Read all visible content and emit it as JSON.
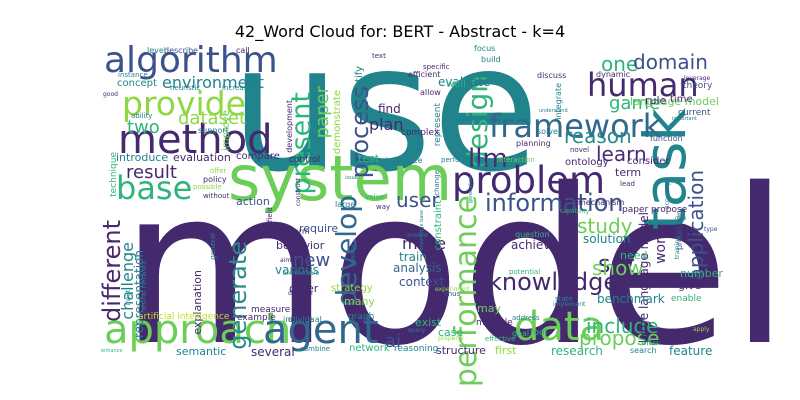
{
  "title": "42_Word Cloud for: BERT - Abstract - k=4",
  "palette": {
    "dark_purple": "#45296f",
    "purple": "#472c7a",
    "indigo": "#3b528b",
    "blue": "#31688e",
    "teal": "#21838c",
    "sea": "#2a8a8a",
    "green_teal": "#2fb47c",
    "green": "#6cce59",
    "lime": "#8fd744",
    "yellow": "#bddf26"
  },
  "words": [
    {
      "id": "model",
      "text": "model"
    },
    {
      "id": "use",
      "text": "use"
    },
    {
      "id": "system",
      "text": "system"
    },
    {
      "id": "task",
      "text": "task"
    },
    {
      "id": "approach",
      "text": "approach"
    },
    {
      "id": "agent",
      "text": "agent"
    },
    {
      "id": "data",
      "text": "data"
    },
    {
      "id": "method",
      "text": "method"
    },
    {
      "id": "algorithm",
      "text": "algorithm"
    },
    {
      "id": "provide",
      "text": "provide"
    },
    {
      "id": "problem",
      "text": "problem"
    },
    {
      "id": "framework",
      "text": "framework"
    },
    {
      "id": "human",
      "text": "human"
    },
    {
      "id": "base",
      "text": "base"
    },
    {
      "id": "information",
      "text": "information"
    },
    {
      "id": "knowledge",
      "text": "knowledge"
    },
    {
      "id": "performance",
      "text": "performance"
    },
    {
      "id": "develop",
      "text": "develop"
    },
    {
      "id": "design",
      "text": "design"
    },
    {
      "id": "process",
      "text": "process"
    },
    {
      "id": "present",
      "text": "present"
    },
    {
      "id": "different",
      "text": "different"
    },
    {
      "id": "generate",
      "text": "generate"
    },
    {
      "id": "llm",
      "text": "llm"
    },
    {
      "id": "user",
      "text": "user"
    },
    {
      "id": "reason",
      "text": "reason"
    },
    {
      "id": "learn",
      "text": "learn"
    },
    {
      "id": "set",
      "text": "set"
    },
    {
      "id": "show",
      "text": "show"
    },
    {
      "id": "study",
      "text": "study"
    },
    {
      "id": "include",
      "text": "include"
    },
    {
      "id": "propose",
      "text": "propose"
    },
    {
      "id": "application",
      "text": "application"
    },
    {
      "id": "one",
      "text": "one"
    },
    {
      "id": "domain",
      "text": "domain"
    },
    {
      "id": "game",
      "text": "game"
    },
    {
      "id": "result",
      "text": "result"
    },
    {
      "id": "two",
      "text": "two"
    },
    {
      "id": "dataset",
      "text": "dataset"
    },
    {
      "id": "environment",
      "text": "environment"
    },
    {
      "id": "paper",
      "text": "paper"
    },
    {
      "id": "new",
      "text": "new"
    },
    {
      "id": "ai",
      "text": "ai"
    },
    {
      "id": "make",
      "text": "make"
    },
    {
      "id": "plan",
      "text": "plan"
    },
    {
      "id": "challenge",
      "text": "challenge"
    },
    {
      "id": "language_model",
      "text": "language model"
    },
    {
      "id": "large_language_model",
      "text": "large language model"
    },
    {
      "id": "work",
      "text": "work"
    },
    {
      "id": "rule",
      "text": "rule"
    },
    {
      "id": "time",
      "text": "time"
    },
    {
      "id": "representation",
      "text": "representation"
    },
    {
      "id": "explanation",
      "text": "explanation"
    },
    {
      "id": "artificial_intelligence",
      "text": "artificial intelligence"
    },
    {
      "id": "neural_network",
      "text": "neural network"
    },
    {
      "id": "behavior",
      "text": "behavior"
    },
    {
      "id": "various",
      "text": "various"
    },
    {
      "id": "order",
      "text": "order"
    },
    {
      "id": "many",
      "text": "many"
    },
    {
      "id": "require",
      "text": "require"
    },
    {
      "id": "action",
      "text": "action"
    },
    {
      "id": "strategy",
      "text": "strategy"
    },
    {
      "id": "train",
      "text": "train"
    },
    {
      "id": "analysis",
      "text": "analysis"
    },
    {
      "id": "context",
      "text": "context"
    },
    {
      "id": "achieve",
      "text": "achieve"
    },
    {
      "id": "solution",
      "text": "solution"
    },
    {
      "id": "need",
      "text": "need"
    },
    {
      "id": "benchmark",
      "text": "benchmark"
    },
    {
      "id": "give",
      "text": "give"
    },
    {
      "id": "number",
      "text": "number"
    },
    {
      "id": "enable",
      "text": "enable"
    },
    {
      "id": "exist",
      "text": "exist"
    },
    {
      "id": "case",
      "text": "case"
    },
    {
      "id": "may",
      "text": "may"
    },
    {
      "id": "first",
      "text": "first"
    },
    {
      "id": "structure",
      "text": "structure"
    },
    {
      "id": "research",
      "text": "research"
    },
    {
      "id": "feature",
      "text": "feature"
    },
    {
      "id": "network",
      "text": "network"
    },
    {
      "id": "semantic",
      "text": "semantic"
    },
    {
      "id": "several",
      "text": "several"
    },
    {
      "id": "evaluation",
      "text": "evaluation"
    },
    {
      "id": "compare",
      "text": "compare"
    },
    {
      "id": "introduce",
      "text": "introduce"
    },
    {
      "id": "technique",
      "text": "technique"
    },
    {
      "id": "concept",
      "text": "concept"
    },
    {
      "id": "improve",
      "text": "improve"
    },
    {
      "id": "evaluate",
      "text": "evaluate"
    },
    {
      "id": "well",
      "text": "well"
    },
    {
      "id": "find",
      "text": "find"
    },
    {
      "id": "demonstrate",
      "text": "demonstrate"
    },
    {
      "id": "identify",
      "text": "identify"
    },
    {
      "id": "represent",
      "text": "represent"
    },
    {
      "id": "ontology",
      "text": "ontology"
    },
    {
      "id": "consider",
      "text": "consider"
    },
    {
      "id": "term",
      "text": "term"
    },
    {
      "id": "test",
      "text": "test"
    },
    {
      "id": "control",
      "text": "control"
    },
    {
      "id": "complex",
      "text": "complex"
    },
    {
      "id": "constraint",
      "text": "constraint"
    },
    {
      "id": "graph",
      "text": "graph"
    },
    {
      "id": "measure",
      "text": "measure"
    },
    {
      "id": "example",
      "text": "example"
    },
    {
      "id": "define",
      "text": "define"
    },
    {
      "id": "form",
      "text": "form"
    },
    {
      "id": "individual",
      "text": "individual"
    },
    {
      "id": "multiple",
      "text": "multiple"
    },
    {
      "id": "tool",
      "text": "tool"
    },
    {
      "id": "goal",
      "text": "goal"
    },
    {
      "id": "combine",
      "text": "combine"
    },
    {
      "id": "reasoning",
      "text": "reasoning"
    },
    {
      "id": "current",
      "text": "current"
    },
    {
      "id": "theory",
      "text": "theory"
    },
    {
      "id": "level",
      "text": "level"
    },
    {
      "id": "describe",
      "text": "describe"
    },
    {
      "id": "call",
      "text": "call"
    },
    {
      "id": "instance",
      "text": "instance"
    },
    {
      "id": "good",
      "text": "good"
    },
    {
      "id": "heuristic",
      "text": "heuristic"
    },
    {
      "id": "increase",
      "text": "increase"
    },
    {
      "id": "ability",
      "text": "ability"
    },
    {
      "id": "support",
      "text": "support"
    },
    {
      "id": "development",
      "text": "development"
    },
    {
      "id": "efficient",
      "text": "efficient"
    },
    {
      "id": "allow",
      "text": "allow"
    },
    {
      "id": "text",
      "text": "text"
    },
    {
      "id": "focus",
      "text": "focus"
    },
    {
      "id": "build",
      "text": "build"
    },
    {
      "id": "discuss",
      "text": "discuss"
    },
    {
      "id": "dynamic",
      "text": "dynamic"
    },
    {
      "id": "leverage",
      "text": "leverage"
    },
    {
      "id": "important",
      "text": "important"
    },
    {
      "id": "integrate",
      "text": "integrate"
    },
    {
      "id": "understand",
      "text": "understand"
    },
    {
      "id": "solve",
      "text": "solve"
    },
    {
      "id": "planning",
      "text": "planning"
    },
    {
      "id": "function",
      "text": "function"
    },
    {
      "id": "novel",
      "text": "novel"
    },
    {
      "id": "inference",
      "text": "inference"
    },
    {
      "id": "perform",
      "text": "perform"
    },
    {
      "id": "within",
      "text": "within"
    },
    {
      "id": "interaction",
      "text": "interaction"
    },
    {
      "id": "change",
      "text": "change"
    },
    {
      "id": "lead",
      "text": "lead"
    },
    {
      "id": "policy",
      "text": "policy"
    },
    {
      "id": "offer",
      "text": "offer"
    },
    {
      "id": "possible",
      "text": "possible"
    },
    {
      "id": "without",
      "text": "without"
    },
    {
      "id": "general",
      "text": "general"
    },
    {
      "id": "aim",
      "text": "aim"
    },
    {
      "id": "architecture",
      "text": "architecture"
    },
    {
      "id": "decision",
      "text": "decision"
    },
    {
      "id": "value",
      "text": "value"
    },
    {
      "id": "way",
      "text": "way"
    },
    {
      "id": "large",
      "text": "large"
    },
    {
      "id": "issue",
      "text": "issue"
    },
    {
      "id": "question",
      "text": "question"
    },
    {
      "id": "mechanism",
      "text": "mechanism"
    },
    {
      "id": "capability",
      "text": "capability"
    },
    {
      "id": "paper_propose",
      "text": "paper propose"
    },
    {
      "id": "accuracy",
      "text": "accuracy"
    },
    {
      "id": "prediction",
      "text": "prediction"
    },
    {
      "id": "type",
      "text": "type"
    },
    {
      "id": "training",
      "text": "training"
    },
    {
      "id": "due",
      "text": "due"
    },
    {
      "id": "implement",
      "text": "implement"
    },
    {
      "id": "state",
      "text": "state"
    },
    {
      "id": "potential",
      "text": "potential"
    },
    {
      "id": "thus",
      "text": "thus"
    },
    {
      "id": "address",
      "text": "address"
    },
    {
      "id": "effective",
      "text": "effective"
    },
    {
      "id": "often",
      "text": "often"
    },
    {
      "id": "search",
      "text": "search"
    },
    {
      "id": "apply",
      "text": "apply"
    },
    {
      "id": "query",
      "text": "query"
    },
    {
      "id": "property",
      "text": "property"
    },
    {
      "id": "experiment",
      "text": "experiment"
    },
    {
      "id": "enhance",
      "text": "enhance"
    },
    {
      "id": "input",
      "text": "input"
    },
    {
      "id": "field",
      "text": "field"
    },
    {
      "id": "specific",
      "text": "specific"
    },
    {
      "id": "three",
      "text": "three"
    },
    {
      "id": "generation",
      "text": "generation"
    },
    {
      "id": "construct",
      "text": "construct"
    },
    {
      "id": "involve",
      "text": "involve"
    },
    {
      "id": "similar",
      "text": "similar"
    },
    {
      "id": "knowledge_base",
      "text": "knowledge base"
    }
  ]
}
